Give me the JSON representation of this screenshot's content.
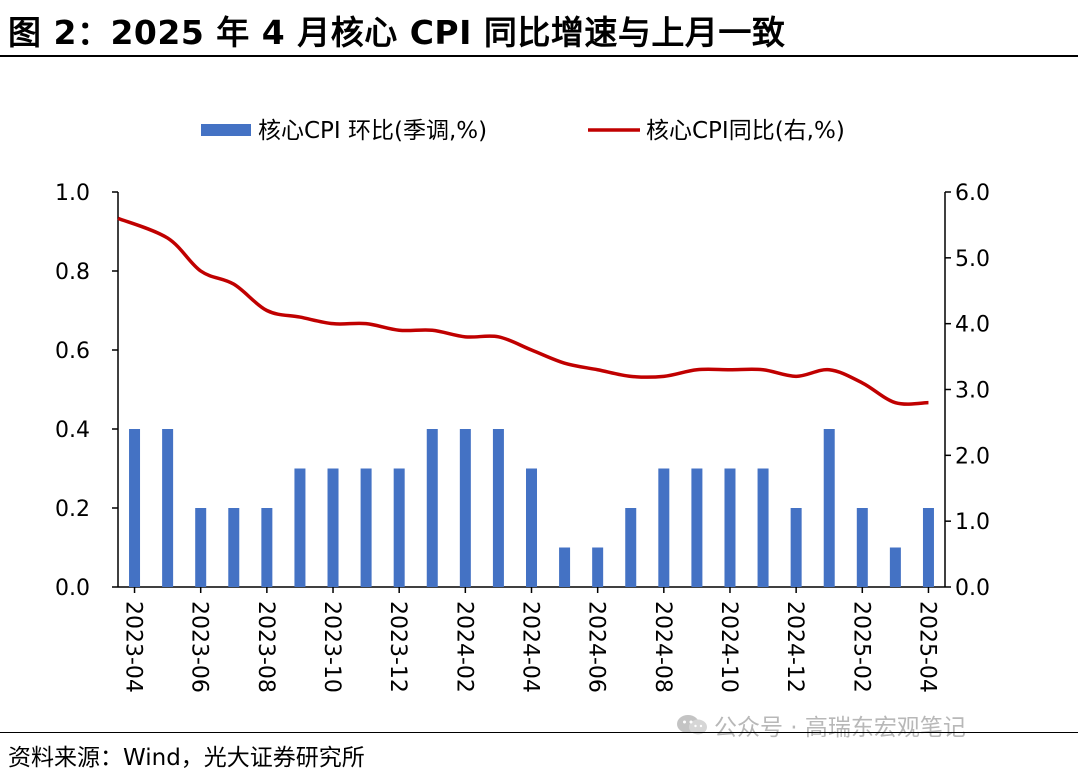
{
  "title": "图 2：2025 年 4 月核心 CPI 同比增速与上月一致",
  "source": "资料来源：Wind，光大证券研究所",
  "watermark": "公众号 · 高瑞东宏观笔记",
  "watermark_icon": "wechat-icon",
  "colors": {
    "bar": "#4472C4",
    "line": "#C00000"
  },
  "chart_data": {
    "type": "bar+line",
    "legend_position": "top-center",
    "grid": false,
    "categories": [
      "2023-04",
      "2023-05",
      "2023-06",
      "2023-07",
      "2023-08",
      "2023-09",
      "2023-10",
      "2023-11",
      "2023-12",
      "2024-01",
      "2024-02",
      "2024-03",
      "2024-04",
      "2024-05",
      "2024-06",
      "2024-07",
      "2024-08",
      "2024-09",
      "2024-10",
      "2024-11",
      "2024-12",
      "2025-01",
      "2025-02",
      "2025-03",
      "2025-04"
    ],
    "x_tick_labels": [
      "2023-04",
      "2023-06",
      "2023-08",
      "2023-10",
      "2023-12",
      "2024-02",
      "2024-04",
      "2024-06",
      "2024-08",
      "2024-10",
      "2024-12",
      "2025-02",
      "2025-04"
    ],
    "series": [
      {
        "name": "核心CPI 环比(季调,%)",
        "type": "bar",
        "axis": "left",
        "values": [
          0.4,
          0.4,
          0.2,
          0.2,
          0.2,
          0.3,
          0.3,
          0.3,
          0.3,
          0.4,
          0.4,
          0.4,
          0.3,
          0.1,
          0.1,
          0.2,
          0.3,
          0.3,
          0.3,
          0.3,
          0.2,
          0.4,
          0.2,
          0.1,
          0.2
        ]
      },
      {
        "name": "核心CPI同比(右,%)",
        "type": "line",
        "axis": "right",
        "values": [
          5.6,
          5.3,
          4.8,
          4.6,
          4.2,
          4.1,
          4.0,
          4.0,
          3.9,
          3.9,
          3.8,
          3.8,
          3.6,
          3.4,
          3.3,
          3.2,
          3.2,
          3.3,
          3.3,
          3.3,
          3.2,
          3.3,
          3.1,
          2.8,
          2.8
        ]
      }
    ],
    "y_left": {
      "ylim": [
        0,
        1.0
      ],
      "tick_labels": [
        "0.0",
        "0.2",
        "0.4",
        "0.6",
        "0.8",
        "1.0"
      ],
      "ticks": [
        0,
        0.2,
        0.4,
        0.6,
        0.8,
        1.0
      ]
    },
    "y_right": {
      "ylim": [
        0,
        6.0
      ],
      "tick_labels": [
        "0.0",
        "1.0",
        "2.0",
        "3.0",
        "4.0",
        "5.0",
        "6.0"
      ],
      "ticks": [
        0,
        1,
        2,
        3,
        4,
        5,
        6
      ]
    }
  }
}
